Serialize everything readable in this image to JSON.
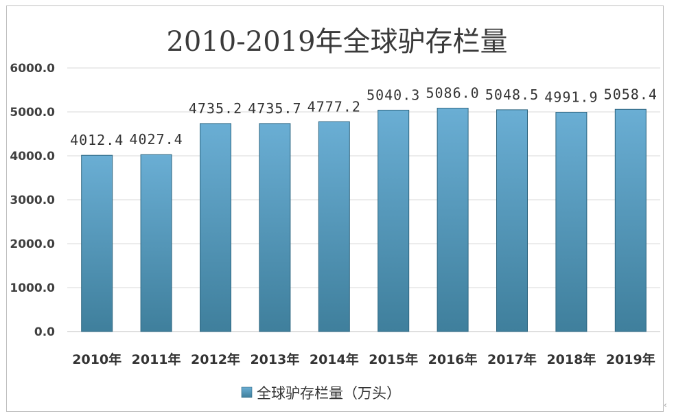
{
  "chart_data": {
    "type": "bar",
    "title": "2010-2019年全球驴存栏量",
    "categories": [
      "2010年",
      "2011年",
      "2012年",
      "2013年",
      "2014年",
      "2015年",
      "2016年",
      "2017年",
      "2018年",
      "2019年"
    ],
    "series": [
      {
        "name": "全球驴存栏量（万头）",
        "values": [
          4012.4,
          4027.4,
          4735.2,
          4735.7,
          4777.2,
          5040.3,
          5086.0,
          5048.5,
          4991.9,
          5058.4
        ],
        "labels": [
          "4012.4",
          "4027.4",
          "4735.2",
          "4735.7",
          "4777.2",
          "5040.3",
          "5086.0",
          "5048.5",
          "4991.9",
          "5058.4"
        ]
      }
    ],
    "yticks": [
      "0.0",
      "1000.0",
      "2000.0",
      "3000.0",
      "4000.0",
      "5000.0",
      "6000.0"
    ],
    "ylim": [
      0,
      6000
    ],
    "grid": true,
    "legend": "bottom",
    "colors": {
      "bar_top": "#6aaed4",
      "bar_bottom": "#3f7f9c",
      "bar_edge": "#2f6680",
      "grid": "#d9d9d9"
    }
  }
}
